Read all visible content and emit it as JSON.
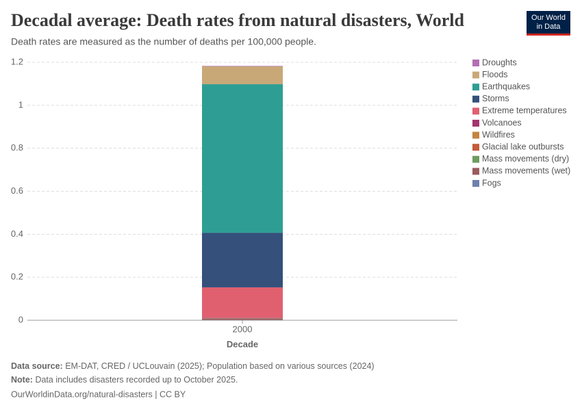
{
  "chart_data": {
    "type": "stacked-bar",
    "title": "Decadal average: Death rates from natural disasters, World",
    "subtitle": "Death rates are measured as the number of deaths per 100,000 people.",
    "logo": [
      "Our World",
      "in Data"
    ],
    "x_label": "Decade",
    "categories": [
      "2000"
    ],
    "ylim": [
      0,
      1.2
    ],
    "yticks": [
      0,
      0.2,
      0.4,
      0.6,
      0.8,
      1,
      1.2
    ],
    "grid": true,
    "legend": "right",
    "series": [
      {
        "name": "Droughts",
        "color": "#b36fb6",
        "values": [
          0.002
        ]
      },
      {
        "name": "Floods",
        "color": "#c9a878",
        "values": [
          0.083
        ]
      },
      {
        "name": "Earthquakes",
        "color": "#2e9e94",
        "values": [
          0.691
        ]
      },
      {
        "name": "Storms",
        "color": "#34507b",
        "values": [
          0.254
        ]
      },
      {
        "name": "Extreme temperatures",
        "color": "#e0606f",
        "values": [
          0.141
        ]
      },
      {
        "name": "Volcanoes",
        "color": "#a2356d",
        "values": [
          0.002
        ]
      },
      {
        "name": "Wildfires",
        "color": "#c4853f",
        "values": [
          0.001
        ]
      },
      {
        "name": "Glacial lake outbursts",
        "color": "#c45b3a",
        "values": [
          0
        ]
      },
      {
        "name": "Mass movements (dry)",
        "color": "#6f9c62",
        "values": [
          0.001
        ]
      },
      {
        "name": "Mass movements (wet)",
        "color": "#9b5a5e",
        "values": [
          0.008
        ]
      },
      {
        "name": "Fogs",
        "color": "#6f82ad",
        "values": [
          0
        ]
      }
    ],
    "source": {
      "label": "Data source:",
      "text": "EM-DAT, CRED / UCLouvain (2025); Population based on various sources (2024)"
    },
    "note": {
      "label": "Note:",
      "text": "Data includes disasters recorded up to October 2025."
    },
    "footer": "OurWorldinData.org/natural-disasters | CC BY"
  }
}
